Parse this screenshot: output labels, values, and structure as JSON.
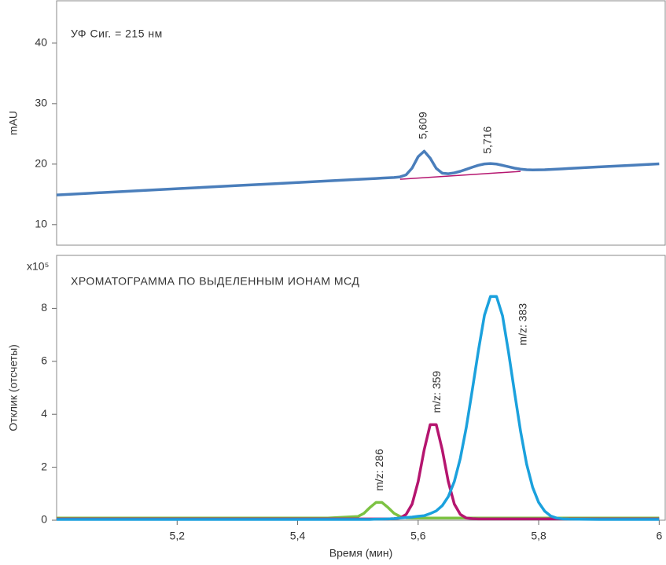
{
  "chart_data": [
    {
      "type": "line",
      "title": "УФ Сиг. = 215 нм",
      "ylabel": "mAU",
      "xlim": [
        5.0,
        6.01
      ],
      "ylim": [
        6.6,
        47
      ],
      "yticks": [
        10,
        20,
        30,
        40
      ],
      "x": [
        5.0,
        5.05,
        5.1,
        5.15,
        5.2,
        5.25,
        5.3,
        5.35,
        5.4,
        5.45,
        5.5,
        5.51,
        5.52,
        5.53,
        5.54,
        5.55,
        5.56,
        5.57,
        5.58,
        5.59,
        5.6,
        5.61,
        5.62,
        5.63,
        5.64,
        5.65,
        5.66,
        5.67,
        5.68,
        5.69,
        5.7,
        5.71,
        5.72,
        5.73,
        5.74,
        5.75,
        5.76,
        5.77,
        5.78,
        5.79,
        5.8,
        5.81,
        5.82,
        5.83,
        5.84,
        5.85,
        5.9,
        5.95,
        6.0
      ],
      "series": [
        {
          "name": "УФ",
          "color": "#4a7ebb",
          "values": [
            14.9,
            15.16,
            15.42,
            15.67,
            15.93,
            16.19,
            16.45,
            16.7,
            16.96,
            17.22,
            17.48,
            17.53,
            17.58,
            17.63,
            17.69,
            17.74,
            17.79,
            17.89,
            18.23,
            19.35,
            21.23,
            22.14,
            20.98,
            19.3,
            18.5,
            18.41,
            18.56,
            18.81,
            19.14,
            19.49,
            19.81,
            20.03,
            20.1,
            20.01,
            19.8,
            19.56,
            19.33,
            19.17,
            19.07,
            19.04,
            19.05,
            19.07,
            19.12,
            19.17,
            19.22,
            19.28,
            19.54,
            19.79,
            20.05
          ]
        }
      ],
      "integration_baseline": {
        "color": "#b5156f",
        "x": [
          5.57,
          5.77
        ],
        "values": [
          17.5,
          18.8
        ]
      },
      "annotations": [
        {
          "text": "5,609",
          "x": 5.609,
          "y": 24.1
        },
        {
          "text": "5,716",
          "x": 5.716,
          "y": 21.7
        }
      ]
    },
    {
      "type": "line",
      "title": "ХРОМАТОГРАММА ПО ВЫДЕЛЕННЫМ ИОНАМ МСД",
      "ylabel": "Отклик (отсчеты)",
      "y_unit": "x10⁵",
      "xlabel": "Время (мин)",
      "xlim": [
        5.0,
        6.01
      ],
      "ylim": [
        0,
        10
      ],
      "yticks": [
        0,
        2,
        4,
        6,
        8
      ],
      "xticks": [
        {
          "value": 5.2,
          "label": "5,2"
        },
        {
          "value": 5.4,
          "label": "5,4"
        },
        {
          "value": 5.6,
          "label": "5,6"
        },
        {
          "value": 5.8,
          "label": "5,8"
        },
        6
      ],
      "x": [
        5.0,
        5.05,
        5.1,
        5.15,
        5.2,
        5.25,
        5.3,
        5.35,
        5.4,
        5.45,
        5.5,
        5.51,
        5.52,
        5.53,
        5.54,
        5.55,
        5.56,
        5.57,
        5.58,
        5.59,
        5.6,
        5.61,
        5.62,
        5.63,
        5.64,
        5.65,
        5.66,
        5.67,
        5.68,
        5.69,
        5.7,
        5.71,
        5.72,
        5.73,
        5.74,
        5.75,
        5.76,
        5.77,
        5.78,
        5.79,
        5.8,
        5.81,
        5.82,
        5.83,
        5.84,
        5.85,
        5.9,
        5.95,
        6.0
      ],
      "series": [
        {
          "name": "m/z: 286",
          "color": "#7cc242",
          "values": [
            0.08,
            0.08,
            0.08,
            0.08,
            0.08,
            0.08,
            0.08,
            0.08,
            0.08,
            0.08,
            0.14,
            0.26,
            0.48,
            0.67,
            0.67,
            0.48,
            0.26,
            0.14,
            0.09,
            0.08,
            0.08,
            0.08,
            0.08,
            0.08,
            0.08,
            0.08,
            0.08,
            0.08,
            0.08,
            0.08,
            0.08,
            0.08,
            0.08,
            0.08,
            0.08,
            0.08,
            0.08,
            0.08,
            0.08,
            0.08,
            0.08,
            0.08,
            0.08,
            0.08,
            0.08,
            0.08,
            0.08,
            0.08,
            0.08
          ]
        },
        {
          "name": "m/z: 359",
          "color": "#b5156f",
          "values": [
            0.05,
            0.05,
            0.05,
            0.05,
            0.05,
            0.05,
            0.05,
            0.05,
            0.05,
            0.05,
            0.05,
            0.05,
            0.05,
            0.05,
            0.05,
            0.05,
            0.06,
            0.08,
            0.22,
            0.61,
            1.46,
            2.66,
            3.61,
            3.61,
            2.66,
            1.46,
            0.61,
            0.22,
            0.08,
            0.06,
            0.05,
            0.05,
            0.05,
            0.05,
            0.05,
            0.05,
            0.05,
            0.05,
            0.05,
            0.05,
            0.05,
            0.05,
            0.05,
            0.05,
            0.05,
            0.05,
            0.05,
            0.05,
            0.05
          ]
        },
        {
          "name": "m/z: 383",
          "color": "#1ba1dd",
          "values": [
            0.03,
            0.03,
            0.03,
            0.03,
            0.03,
            0.03,
            0.03,
            0.03,
            0.03,
            0.03,
            0.03,
            0.03,
            0.03,
            0.04,
            0.04,
            0.05,
            0.06,
            0.08,
            0.1,
            0.12,
            0.15,
            0.17,
            0.25,
            0.35,
            0.55,
            0.89,
            1.46,
            2.34,
            3.52,
            4.94,
            6.41,
            7.74,
            8.45,
            8.45,
            7.72,
            6.34,
            4.82,
            3.35,
            2.12,
            1.24,
            0.67,
            0.34,
            0.16,
            0.08,
            0.05,
            0.04,
            0.03,
            0.03,
            0.03
          ]
        }
      ],
      "annotations": [
        {
          "text": "m/z: 286",
          "x": 5.537,
          "y": 1.1
        },
        {
          "text": "m/z: 359",
          "x": 5.632,
          "y": 4.05
        },
        {
          "text": "m/z: 383",
          "x": 5.775,
          "y": 6.6
        }
      ]
    }
  ]
}
